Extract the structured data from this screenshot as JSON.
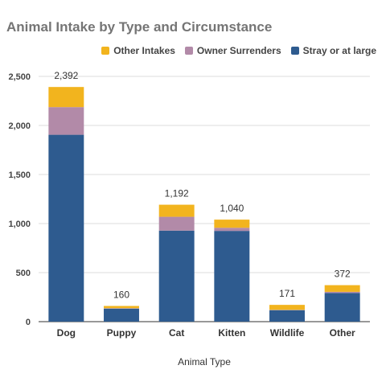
{
  "chart_data": {
    "type": "bar",
    "stacked": true,
    "title": "Animal Intake by Type and Circumstance",
    "xlabel": "Animal Type",
    "ylabel": "",
    "categories": [
      "Dog",
      "Puppy",
      "Cat",
      "Kitten",
      "Wildlife",
      "Other"
    ],
    "series": [
      {
        "name": "Stray or at large",
        "color": "#2e5b8f",
        "values": [
          1905,
          133,
          928,
          925,
          117,
          292
        ]
      },
      {
        "name": "Owner Surrenders",
        "color": "#b28aa8",
        "values": [
          282,
          4,
          141,
          32,
          3,
          12
        ]
      },
      {
        "name": "Other Intakes",
        "color": "#f2b41e",
        "values": [
          205,
          23,
          123,
          83,
          51,
          68
        ]
      }
    ],
    "totals": [
      2392,
      160,
      1192,
      1040,
      171,
      372
    ],
    "total_labels": [
      "2,392",
      "160",
      "1,192",
      "1,040",
      "171",
      "372"
    ],
    "ylim": [
      0,
      2500
    ],
    "yticks": [
      0,
      500,
      1000,
      1500,
      2000,
      2500
    ],
    "ytick_labels": [
      "0",
      "500",
      "1,000",
      "1,500",
      "2,000",
      "2,500"
    ],
    "legend_order": [
      "Other Intakes",
      "Owner Surrenders",
      "Stray or at large"
    ],
    "legend_position": "top-right",
    "grid": true
  }
}
